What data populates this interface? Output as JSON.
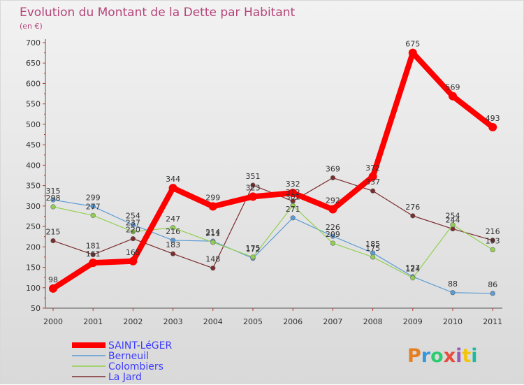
{
  "chart_data": {
    "type": "line",
    "title": "Evolution du Montant de la Dette par Habitant",
    "subtitle": "(en €)",
    "x": [
      "2000",
      "2001",
      "2002",
      "2003",
      "2004",
      "2005",
      "2006",
      "2007",
      "2008",
      "2009",
      "2010",
      "2011"
    ],
    "ylim": [
      50,
      700
    ],
    "yticks": [
      50,
      100,
      150,
      200,
      250,
      300,
      350,
      400,
      450,
      500,
      550,
      600,
      650,
      700
    ],
    "grid": false,
    "series": [
      {
        "name": "SAINT-LéGER",
        "color": "#ff0000",
        "values": [
          98,
          161,
          165,
          344,
          299,
          323,
          332,
          292,
          372,
          675,
          569,
          493
        ]
      },
      {
        "name": "Berneuil",
        "color": "#5b9bd5",
        "values": [
          315,
          299,
          254,
          216,
          214,
          172,
          271,
          226,
          185,
          127,
          88,
          86
        ]
      },
      {
        "name": "Colombiers",
        "color": "#92d050",
        "values": [
          298,
          277,
          237,
          247,
          211,
          175,
          301,
          209,
          175,
          124,
          254,
          193
        ]
      },
      {
        "name": "La Jard",
        "color": "#7b2c2c",
        "values": [
          215,
          181,
          220,
          183,
          148,
          351,
          312,
          369,
          337,
          276,
          244,
          216
        ]
      }
    ],
    "legend_position": "bottom-left"
  },
  "branding": {
    "logo_text": "Proxiti"
  }
}
